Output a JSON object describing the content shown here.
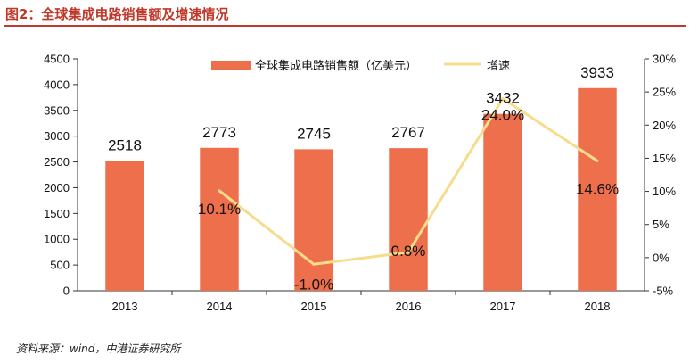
{
  "header": {
    "title": "图2：全球集成电路销售额及增速情况"
  },
  "footer": {
    "source": "资料来源：wind，中港证券研究所"
  },
  "colors": {
    "bar": "#ee6f4b",
    "line": "#f5dd8c",
    "title": "#c0392b"
  },
  "chart_data": {
    "type": "bar",
    "categories": [
      "2013",
      "2014",
      "2015",
      "2016",
      "2017",
      "2018"
    ],
    "series": [
      {
        "name": "全球集成电路销售额（亿美元）",
        "type": "bar",
        "axis": "left",
        "values": [
          2518,
          2773,
          2745,
          2767,
          3432,
          3933
        ],
        "labels": [
          "2518",
          "2773",
          "2745",
          "2767",
          "3432",
          "3933"
        ]
      },
      {
        "name": "增速",
        "type": "line",
        "axis": "right",
        "x": [
          "2014",
          "2015",
          "2016",
          "2017",
          "2018"
        ],
        "values": [
          10.1,
          -1.0,
          0.8,
          24.0,
          14.6
        ],
        "labels": [
          "10.1%",
          "-1.0%",
          "0.8%",
          "24.0%",
          "14.6%"
        ]
      }
    ],
    "ylim": [
      0,
      4500
    ],
    "yticks": [
      "0",
      "500",
      "1000",
      "1500",
      "2000",
      "2500",
      "3000",
      "3500",
      "4000",
      "4500"
    ],
    "y2lim": [
      -5,
      30
    ],
    "y2ticks": [
      "-5%",
      "0%",
      "5%",
      "10%",
      "15%",
      "20%",
      "25%",
      "30%"
    ],
    "legend_position": "top-center",
    "grid": false
  }
}
